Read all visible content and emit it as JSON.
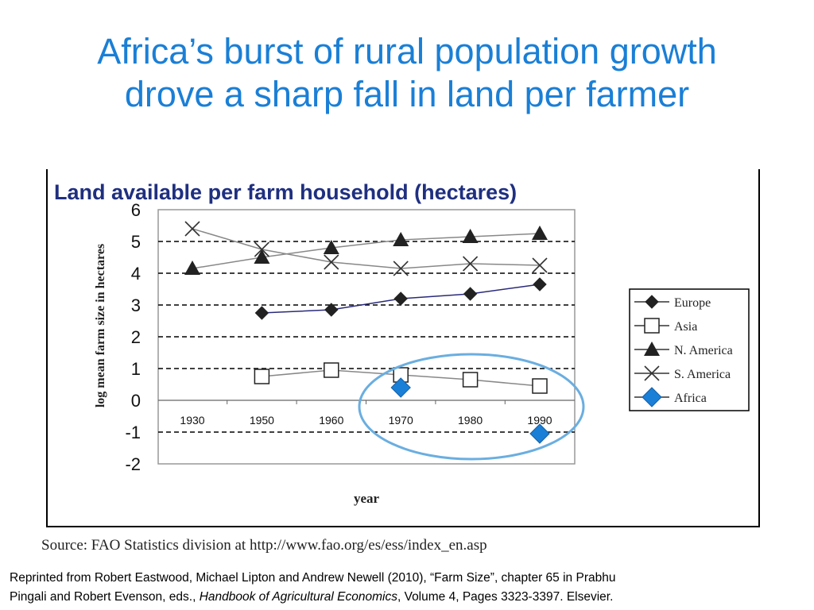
{
  "slide": {
    "title_line1": "Africa’s burst of rural population growth",
    "title_line2": "drove a sharp fall in land per farmer",
    "source": "Source: FAO Statistics division at http://www.fao.org/es/ess/index_en.asp",
    "citation_line1": "Reprinted from Robert Eastwood, Michael Lipton and Andrew Newell (2010), “Farm Size”, chapter 65 in Prabhu",
    "citation_line2_a": "Pingali and Robert Evenson, eds., ",
    "citation_line2_italic": "Handbook of Agricultural Economics",
    "citation_line2_b": ", Volume 4, Pages 3323-3397. Elsevier."
  },
  "colors": {
    "title": "#1a7fd6",
    "chart_title": "#1f2f80",
    "europe_line": "#2a2a7a",
    "africa": "#1a7fd6",
    "highlight_ellipse": "#6aaee0"
  },
  "chart_data": {
    "type": "line",
    "title": "Land available per farm household (hectares)",
    "xlabel": "year",
    "ylabel": "log mean farm size in hectares",
    "categories": [
      "1930",
      "1950",
      "1960",
      "1970",
      "1980",
      "1990"
    ],
    "ylim": [
      -2,
      6
    ],
    "yticks": [
      "6",
      "5",
      "4",
      "3",
      "2",
      "1",
      "0",
      "-1",
      "-2"
    ],
    "dashed_gridlines_at": [
      5,
      4,
      3,
      2,
      1,
      -1
    ],
    "legend_position": "right",
    "series": [
      {
        "name": "Europe",
        "marker": "diamond-small",
        "values": [
          null,
          2.75,
          2.85,
          3.2,
          3.35,
          3.65
        ]
      },
      {
        "name": "Asia",
        "marker": "square-open",
        "values": [
          null,
          0.75,
          0.95,
          0.8,
          0.65,
          0.45
        ]
      },
      {
        "name": "N. America",
        "marker": "triangle",
        "values": [
          4.15,
          4.5,
          4.8,
          5.05,
          5.15,
          5.25
        ]
      },
      {
        "name": "S. America",
        "marker": "x",
        "values": [
          5.4,
          4.75,
          4.35,
          4.15,
          4.3,
          4.25
        ]
      },
      {
        "name": "Africa",
        "marker": "diamond-blue",
        "values": [
          null,
          null,
          null,
          0.4,
          null,
          -1.05
        ]
      }
    ],
    "annotations": [
      {
        "type": "ellipse",
        "note": "highlight around 1970-1990 Africa points"
      }
    ]
  }
}
